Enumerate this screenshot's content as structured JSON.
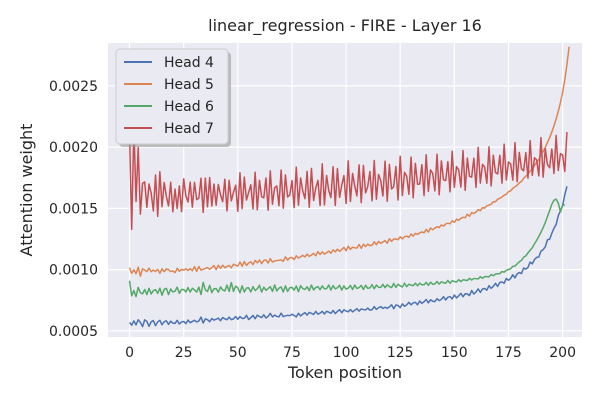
{
  "chart_data": {
    "type": "line",
    "title": "linear_regression - FIRE - Layer 16",
    "xlabel": "Token position",
    "ylabel": "Attention weight",
    "xlim": [
      -9.95,
      208.95
    ],
    "ylim": [
      0.00045,
      0.00285
    ],
    "x_ticks": [
      0,
      25,
      50,
      75,
      100,
      125,
      150,
      175,
      200
    ],
    "y_ticks": [
      0.0005,
      0.001,
      0.0015,
      0.002,
      0.0025
    ],
    "y_tick_labels": [
      "0.0005",
      "0.0010",
      "0.0015",
      "0.0020",
      "0.0025"
    ],
    "grid": true,
    "legend_position": "top-left",
    "x_start": 0,
    "x_step": 1,
    "series": [
      {
        "name": "Head 4",
        "color": "#4c72b0",
        "values": [
          0.000569,
          0.000547,
          0.000581,
          0.000549,
          0.000591,
          0.000569,
          0.000535,
          0.00059,
          0.000578,
          0.000537,
          0.000574,
          0.000584,
          0.000543,
          0.000574,
          0.000586,
          0.00055,
          0.000575,
          0.000582,
          0.000553,
          0.000579,
          0.000563,
          0.000561,
          0.000586,
          0.000556,
          0.000573,
          0.000577,
          0.000559,
          0.000588,
          0.000567,
          0.000577,
          0.000586,
          0.000573,
          0.000581,
          0.000612,
          0.000564,
          0.000598,
          0.000591,
          0.000575,
          0.000601,
          0.000588,
          0.000595,
          0.000604,
          0.000583,
          0.000609,
          0.000598,
          0.000591,
          0.000612,
          0.000592,
          0.000598,
          0.000617,
          0.000595,
          0.000617,
          0.000601,
          0.000603,
          0.000627,
          0.000593,
          0.000607,
          0.000626,
          0.000599,
          0.000628,
          0.000617,
          0.000609,
          0.000631,
          0.000605,
          0.000618,
          0.000643,
          0.000614,
          0.000628,
          0.000619,
          0.000614,
          0.000645,
          0.000617,
          0.000623,
          0.000627,
          0.000624,
          0.000636,
          0.000626,
          0.000614,
          0.000644,
          0.000622,
          0.000637,
          0.000649,
          0.000629,
          0.000651,
          0.000643,
          0.000634,
          0.000659,
          0.000636,
          0.000645,
          0.000659,
          0.000638,
          0.00066,
          0.000653,
          0.000643,
          0.000667,
          0.000641,
          0.000659,
          0.000673,
          0.000648,
          0.000672,
          0.000662,
          0.000656,
          0.000674,
          0.000655,
          0.000668,
          0.000681,
          0.000661,
          0.000679,
          0.000674,
          0.000671,
          0.000686,
          0.000669,
          0.000673,
          0.000698,
          0.000675,
          0.000689,
          0.000698,
          0.000683,
          0.000693,
          0.000684,
          0.000696,
          0.000713,
          0.000681,
          0.000711,
          0.000707,
          0.00069,
          0.00072,
          0.000701,
          0.000712,
          0.000733,
          0.000713,
          0.000729,
          0.000733,
          0.000713,
          0.000744,
          0.000725,
          0.000738,
          0.000756,
          0.000729,
          0.000754,
          0.000742,
          0.000739,
          0.000763,
          0.000747,
          0.000757,
          0.000779,
          0.000752,
          0.000775,
          0.000779,
          0.000761,
          0.000793,
          0.000769,
          0.000786,
          0.000806,
          0.000779,
          0.000803,
          0.000802,
          0.000788,
          0.000829,
          0.000801,
          0.000817,
          0.000843,
          0.000814,
          0.000842,
          0.000846,
          0.000832,
          0.000869,
          0.000847,
          0.000864,
          0.000888,
          0.000863,
          0.000896,
          0.000899,
          0.000889,
          0.000928,
          0.000913,
          0.000928,
          0.000958,
          0.000933,
          0.000965,
          0.000976,
          0.000968,
          0.001013,
          0.001004,
          0.001018,
          0.001062,
          0.001047,
          0.001082,
          0.0011,
          0.001103,
          0.001151,
          0.001163,
          0.001186,
          0.001244,
          0.001248,
          0.001296,
          0.001337,
          0.001368,
          0.00144,
          0.00148,
          0.001523,
          0.001611,
          0.00168
        ]
      },
      {
        "name": "Head 5",
        "color": "#dd8452",
        "values": [
          0.001016,
          0.00097,
          0.000999,
          0.000967,
          0.00102,
          0.000947,
          0.001006,
          0.000997,
          0.000984,
          0.001012,
          0.000983,
          0.000997,
          0.000985,
          0.001002,
          0.00097,
          0.001006,
          0.000984,
          0.001005,
          0.001,
          0.000984,
          0.00099,
          0.000975,
          0.001011,
          0.000986,
          0.001001,
          0.000996,
          0.001006,
          0.000994,
          0.001008,
          0.000991,
          0.001025,
          0.000986,
          0.001025,
          0.000996,
          0.001003,
          0.00101,
          0.001017,
          0.001003,
          0.001017,
          0.001033,
          0.001001,
          0.001035,
          0.001011,
          0.001036,
          0.001016,
          0.001025,
          0.001034,
          0.001015,
          0.001044,
          0.001036,
          0.001029,
          0.001062,
          0.001028,
          0.001066,
          0.001035,
          0.001054,
          0.001064,
          0.001041,
          0.001075,
          0.001056,
          0.001078,
          0.001049,
          0.001075,
          0.001079,
          0.001054,
          0.00109,
          0.001061,
          0.001071,
          0.001074,
          0.001076,
          0.00108,
          0.001068,
          0.001104,
          0.001078,
          0.001096,
          0.001099,
          0.001082,
          0.001113,
          0.001095,
          0.001104,
          0.001116,
          0.001104,
          0.001127,
          0.001108,
          0.001119,
          0.001133,
          0.001113,
          0.001147,
          0.001124,
          0.001145,
          0.001127,
          0.001137,
          0.001151,
          0.001134,
          0.001161,
          0.001145,
          0.001166,
          0.00115,
          0.001165,
          0.001181,
          0.001154,
          0.001191,
          0.001165,
          0.001183,
          0.001178,
          0.001176,
          0.001205,
          0.001174,
          0.001207,
          0.001189,
          0.001208,
          0.001196,
          0.001199,
          0.001227,
          0.001203,
          0.00123,
          0.001215,
          0.001225,
          0.001237,
          0.001216,
          0.001252,
          0.001231,
          0.00125,
          0.00125,
          0.001245,
          0.001268,
          0.001251,
          0.001269,
          0.001273,
          0.001264,
          0.001291,
          0.001274,
          0.001296,
          0.001288,
          0.0013,
          0.001308,
          0.001301,
          0.001328,
          0.001307,
          0.001339,
          0.001326,
          0.001338,
          0.001351,
          0.001343,
          0.001365,
          0.001355,
          0.001373,
          0.001379,
          0.001374,
          0.001399,
          0.001386,
          0.001412,
          0.001403,
          0.001418,
          0.001427,
          0.001424,
          0.001452,
          0.001436,
          0.001465,
          0.001459,
          0.00147,
          0.001489,
          0.001481,
          0.001506,
          0.001502,
          0.001521,
          0.001526,
          0.001534,
          0.001555,
          0.001554,
          0.001575,
          0.001582,
          0.001593,
          0.001608,
          0.001615,
          0.001636,
          0.001643,
          0.001663,
          0.001676,
          0.001689,
          0.001708,
          0.00172,
          0.001746,
          0.001763,
          0.00178,
          0.001805,
          0.001822,
          0.001852,
          0.001876,
          0.001899,
          0.001934,
          0.001964,
          0.001998,
          0.002038,
          0.002077,
          0.002123,
          0.002173,
          0.002229,
          0.002293,
          0.002364,
          0.002448,
          0.002549,
          0.002675,
          0.00282
        ]
      },
      {
        "name": "Head 6",
        "color": "#55a868",
        "values": [
          0.000909,
          0.000787,
          0.000829,
          0.00078,
          0.000855,
          0.000812,
          0.000802,
          0.000838,
          0.000796,
          0.000848,
          0.000801,
          0.000829,
          0.000837,
          0.000806,
          0.000849,
          0.000791,
          0.000839,
          0.000847,
          0.000796,
          0.000842,
          0.000818,
          0.000824,
          0.000857,
          0.000806,
          0.000838,
          0.000838,
          0.000818,
          0.000853,
          0.000817,
          0.000848,
          0.000834,
          0.000817,
          0.000857,
          0.000797,
          0.000896,
          0.000835,
          0.000821,
          0.000872,
          0.000812,
          0.000844,
          0.000845,
          0.000816,
          0.000859,
          0.000834,
          0.000826,
          0.000873,
          0.000822,
          0.000894,
          0.000822,
          0.000865,
          0.000852,
          0.000811,
          0.000868,
          0.000817,
          0.000849,
          0.000852,
          0.000818,
          0.000861,
          0.000829,
          0.000844,
          0.000872,
          0.000817,
          0.000857,
          0.000831,
          0.000845,
          0.000861,
          0.000822,
          0.000875,
          0.000826,
          0.000849,
          0.000858,
          0.000818,
          0.000867,
          0.000822,
          0.000852,
          0.000855,
          0.000832,
          0.000866,
          0.00082,
          0.000869,
          0.000845,
          0.000838,
          0.00086,
          0.000829,
          0.000874,
          0.000834,
          0.000854,
          0.000862,
          0.000836,
          0.000867,
          0.000844,
          0.000845,
          0.000874,
          0.000833,
          0.00087,
          0.000843,
          0.000852,
          0.000872,
          0.000833,
          0.000867,
          0.000841,
          0.000849,
          0.000871,
          0.000838,
          0.000874,
          0.000846,
          0.000853,
          0.000871,
          0.000839,
          0.000872,
          0.000848,
          0.000851,
          0.000877,
          0.000844,
          0.000874,
          0.000856,
          0.000855,
          0.00088,
          0.000852,
          0.000876,
          0.000862,
          0.000853,
          0.000887,
          0.000855,
          0.00088,
          0.000868,
          0.000858,
          0.000889,
          0.000861,
          0.000881,
          0.000874,
          0.000869,
          0.000889,
          0.000868,
          0.000889,
          0.000877,
          0.000876,
          0.000896,
          0.000872,
          0.000897,
          0.000881,
          0.000883,
          0.000903,
          0.000882,
          0.000901,
          0.000893,
          0.000889,
          0.000912,
          0.000889,
          0.000909,
          0.000903,
          0.000899,
          0.000918,
          0.000902,
          0.000917,
          0.000914,
          0.000911,
          0.000929,
          0.000915,
          0.000928,
          0.000926,
          0.000924,
          0.000943,
          0.000929,
          0.000943,
          0.000943,
          0.000941,
          0.00096,
          0.00095,
          0.000963,
          0.000966,
          0.000967,
          0.000985,
          0.000979,
          0.000994,
          0.001001,
          0.001007,
          0.001027,
          0.001029,
          0.001047,
          0.001064,
          0.001076,
          0.001101,
          0.001112,
          0.001137,
          0.001158,
          0.001179,
          0.001211,
          0.001239,
          0.001271,
          0.001305,
          0.001343,
          0.001385,
          0.001434,
          0.001481,
          0.001533,
          0.001566,
          0.001576,
          0.001543,
          0.001471,
          0.001523,
          0.00153
        ]
      },
      {
        "name": "Head 7",
        "color": "#c44e52",
        "values": [
          0.002105,
          0.001329,
          0.002174,
          0.001556,
          0.001997,
          0.001453,
          0.001704,
          0.001716,
          0.001509,
          0.001699,
          0.001622,
          0.001479,
          0.001772,
          0.001435,
          0.001799,
          0.001514,
          0.001711,
          0.001598,
          0.00152,
          0.001713,
          0.001472,
          0.001657,
          0.001499,
          0.001683,
          0.001474,
          0.001741,
          0.001602,
          0.001552,
          0.001714,
          0.00151,
          0.001712,
          0.001571,
          0.001584,
          0.001746,
          0.001467,
          0.001747,
          0.001513,
          0.001751,
          0.001519,
          0.001698,
          0.001526,
          0.001695,
          0.001612,
          0.001555,
          0.001738,
          0.00148,
          0.001729,
          0.001561,
          0.001632,
          0.001689,
          0.001476,
          0.001791,
          0.001498,
          0.001755,
          0.001568,
          0.00163,
          0.001693,
          0.001495,
          0.001795,
          0.001488,
          0.001729,
          0.001595,
          0.001586,
          0.001748,
          0.001485,
          0.001806,
          0.001534,
          0.001668,
          0.001683,
          0.001522,
          0.001812,
          0.001501,
          0.001773,
          0.001593,
          0.001609,
          0.001726,
          0.001506,
          0.001837,
          0.001526,
          0.001748,
          0.001642,
          0.001579,
          0.001802,
          0.001509,
          0.001827,
          0.001564,
          0.001666,
          0.001729,
          0.001523,
          0.001863,
          0.001528,
          0.001768,
          0.001645,
          0.001588,
          0.00184,
          0.001524,
          0.001826,
          0.00159,
          0.001689,
          0.001768,
          0.00154,
          0.001888,
          0.001556,
          0.001786,
          0.001683,
          0.001602,
          0.001855,
          0.001546,
          0.001851,
          0.001627,
          0.001678,
          0.001801,
          0.001562,
          0.001891,
          0.001575,
          0.001777,
          0.001727,
          0.001601,
          0.001886,
          0.001557,
          0.001859,
          0.001658,
          0.001678,
          0.001842,
          0.001568,
          0.001926,
          0.001605,
          0.001794,
          0.001762,
          0.001615,
          0.001918,
          0.001586,
          0.001867,
          0.001697,
          0.001699,
          0.001856,
          0.001604,
          0.001938,
          0.001639,
          0.001814,
          0.001786,
          0.001643,
          0.001942,
          0.001611,
          0.001888,
          0.001733,
          0.001727,
          0.001882,
          0.001635,
          0.001966,
          0.001672,
          0.001841,
          0.001814,
          0.001674,
          0.001972,
          0.001647,
          0.00191,
          0.001762,
          0.001755,
          0.001909,
          0.001671,
          0.001998,
          0.001706,
          0.001859,
          0.001837,
          0.001705,
          0.002002,
          0.001683,
          0.001934,
          0.001792,
          0.001781,
          0.001933,
          0.001706,
          0.002024,
          0.001732,
          0.001879,
          0.001863,
          0.001731,
          0.002037,
          0.001718,
          0.001956,
          0.001823,
          0.001806,
          0.001955,
          0.001747,
          0.002053,
          0.00177,
          0.001913,
          0.001896,
          0.001765,
          0.002078,
          0.001755,
          0.001987,
          0.001857,
          0.001832,
          0.001985,
          0.001785,
          0.002096,
          0.001809,
          0.001947,
          0.001935,
          0.001801,
          0.002123
        ]
      }
    ]
  }
}
